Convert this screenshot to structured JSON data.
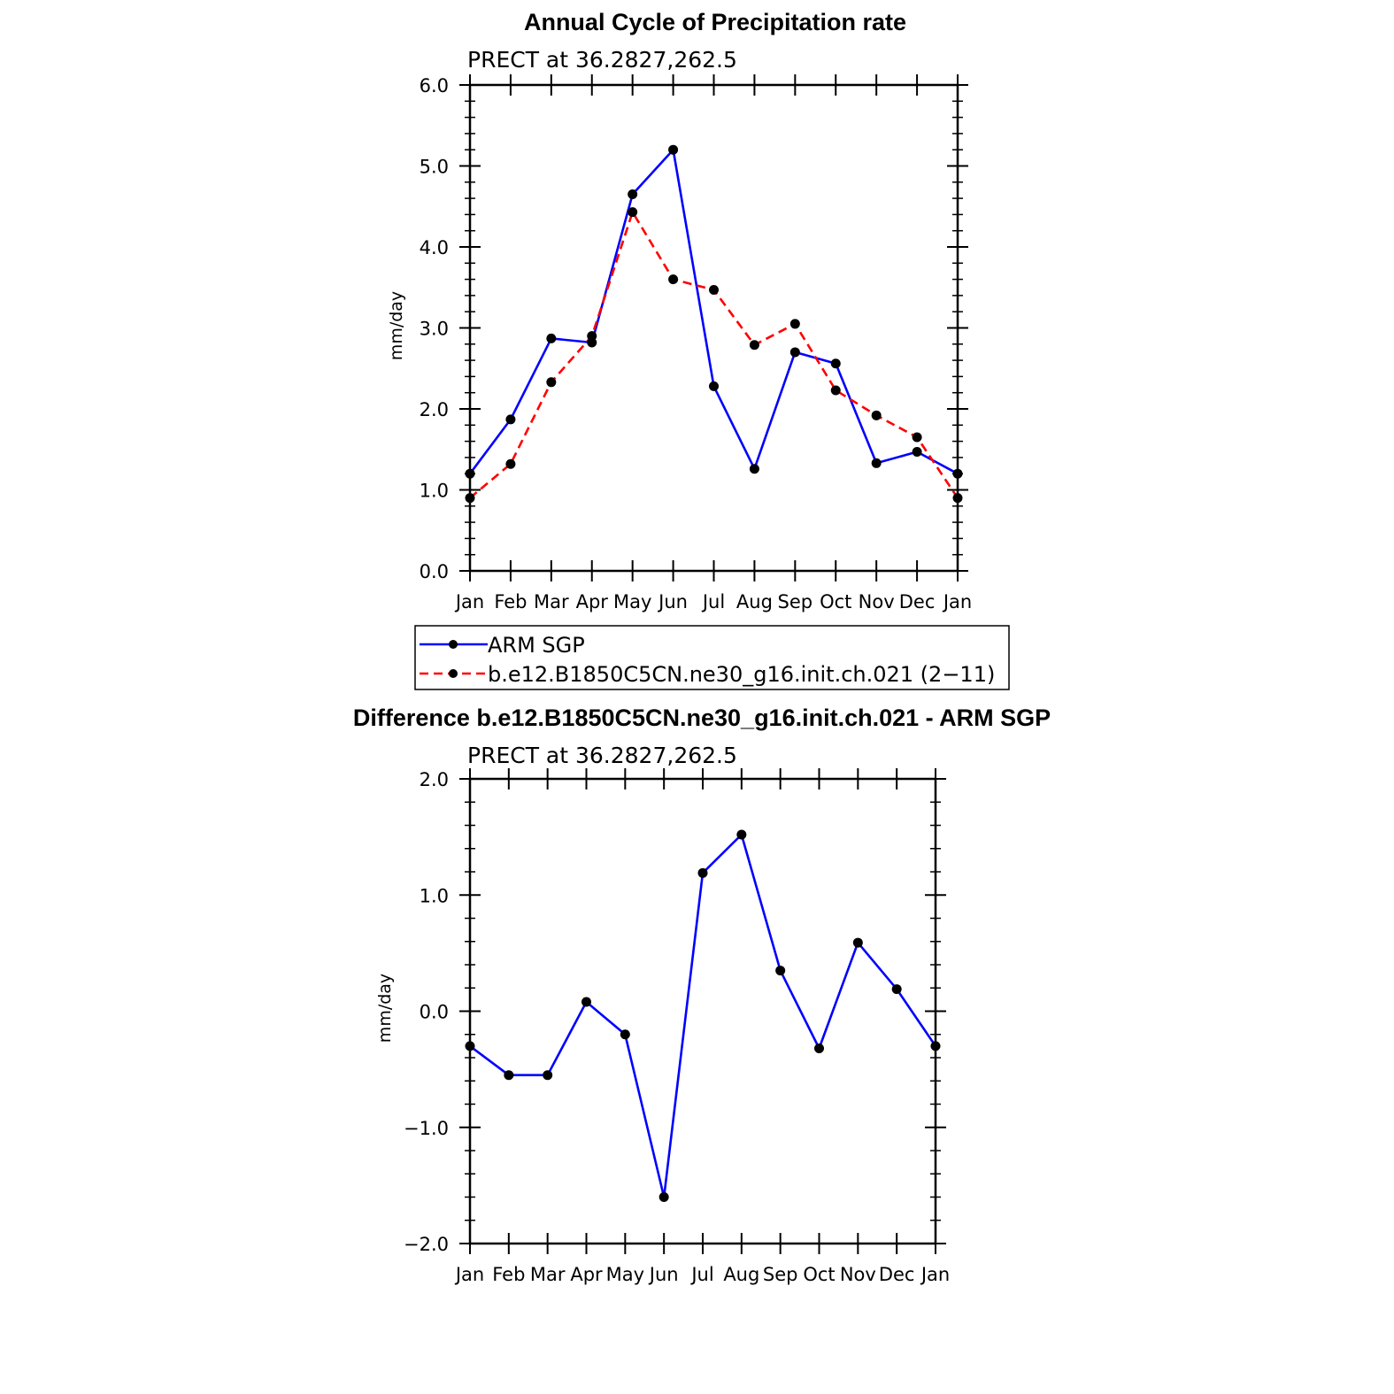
{
  "chart_data": [
    {
      "type": "line",
      "title": "Annual Cycle of Precipitation rate",
      "subtitle": "PRECT at 36.2827,262.5",
      "ylabel": "mm/day",
      "ylim": [
        0,
        6
      ],
      "yticks": [
        "0.0",
        "1.0",
        "2.0",
        "3.0",
        "4.0",
        "5.0",
        "6.0"
      ],
      "categories": [
        "Jan",
        "Feb",
        "Mar",
        "Apr",
        "May",
        "Jun",
        "Jul",
        "Aug",
        "Sep",
        "Oct",
        "Nov",
        "Dec",
        "Jan"
      ],
      "series": [
        {
          "name": "ARM SGP",
          "color": "#0000ff",
          "dashed": false,
          "values": [
            1.2,
            1.87,
            2.87,
            2.82,
            4.65,
            5.2,
            2.28,
            1.26,
            2.7,
            2.56,
            1.33,
            1.47,
            1.2
          ]
        },
        {
          "name": "b.e12.B1850C5CN.ne30_g16.init.ch.021 (2−11)",
          "color": "#ff0000",
          "dashed": true,
          "values": [
            0.9,
            1.32,
            2.33,
            2.9,
            4.43,
            3.6,
            3.47,
            2.79,
            3.05,
            2.23,
            1.92,
            1.65,
            0.9
          ]
        }
      ],
      "legend": "bottom"
    },
    {
      "type": "line",
      "title": "Difference b.e12.B1850C5CN.ne30_g16.init.ch.021 - ARM SGP",
      "subtitle": "PRECT at 36.2827,262.5",
      "ylabel": "mm/day",
      "ylim": [
        -2,
        2
      ],
      "yticks": [
        "−2.0",
        "−1.0",
        "0.0",
        "1.0",
        "2.0"
      ],
      "categories": [
        "Jan",
        "Feb",
        "Mar",
        "Apr",
        "May",
        "Jun",
        "Jul",
        "Aug",
        "Sep",
        "Oct",
        "Nov",
        "Dec",
        "Jan"
      ],
      "series": [
        {
          "color": "#0000ff",
          "dashed": false,
          "values": [
            -0.3,
            -0.55,
            -0.55,
            0.08,
            -0.2,
            -1.6,
            1.19,
            1.52,
            0.35,
            -0.32,
            0.59,
            0.19,
            -0.3
          ]
        }
      ]
    }
  ]
}
